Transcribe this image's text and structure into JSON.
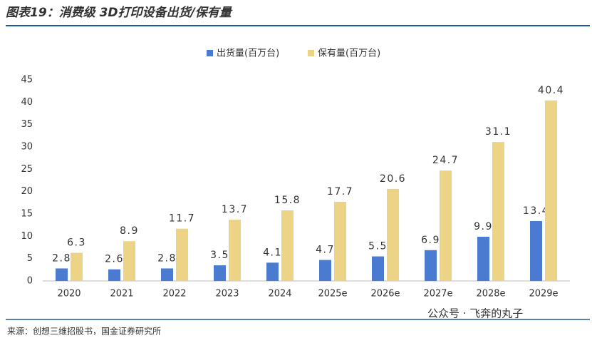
{
  "chart_data": {
    "type": "bar",
    "title": "图表19：消费级 3D打印设备出货/保有量",
    "categories": [
      "2020",
      "2021",
      "2022",
      "2023",
      "2024",
      "2025e",
      "2026e",
      "2027e",
      "2028e",
      "2029e"
    ],
    "series": [
      {
        "name": "出货量(百万台)",
        "color": "#4a7bd0",
        "values": [
          2.8,
          2.6,
          2.8,
          3.5,
          4.1,
          4.7,
          5.5,
          6.9,
          9.9,
          13.4
        ]
      },
      {
        "name": "保有量(百万台)",
        "color": "#ecd386",
        "values": [
          6.3,
          8.9,
          11.7,
          13.7,
          15.8,
          17.7,
          20.6,
          24.7,
          31.1,
          40.4
        ]
      }
    ],
    "ylim": [
      0,
      45
    ],
    "yticks": [
      0,
      5,
      10,
      15,
      20,
      25,
      30,
      35,
      40,
      45
    ],
    "legend": "top",
    "source": "来源：创想三维招股书，国金证券研究所",
    "watermark": "公众号 · 飞奔的丸子"
  }
}
